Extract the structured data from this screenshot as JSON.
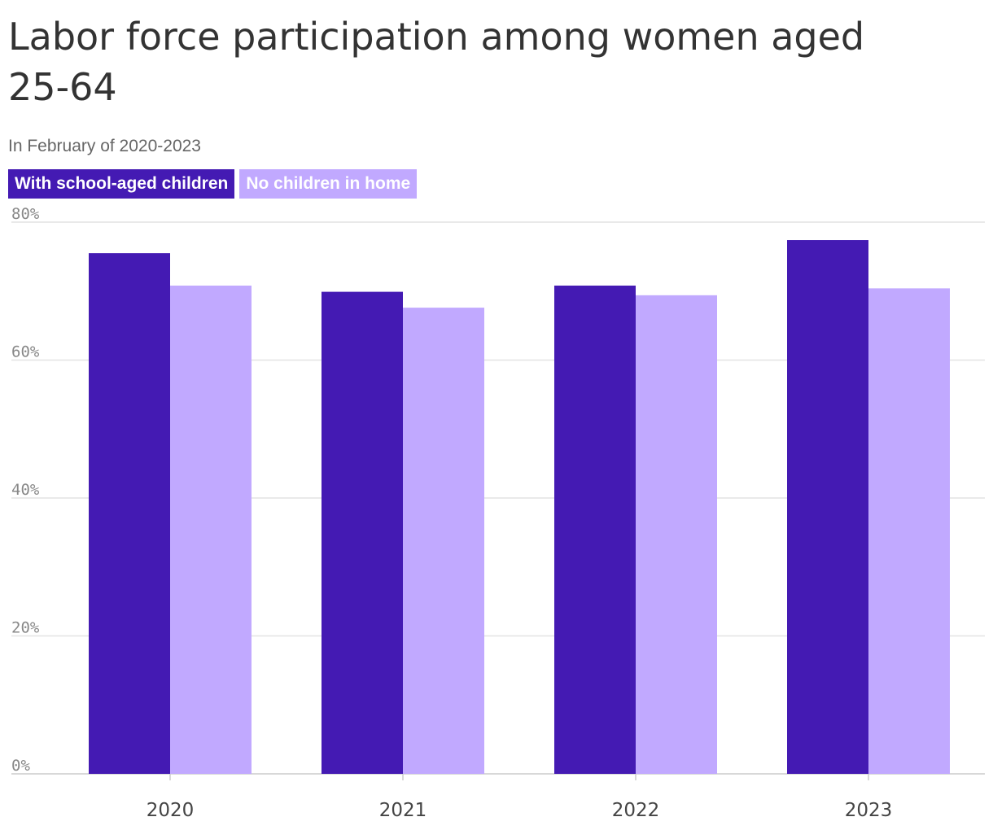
{
  "chart_data": {
    "type": "bar",
    "title": "Labor force participation among women aged 25-64",
    "subtitle": "In February of 2020-2023",
    "categories": [
      "2020",
      "2021",
      "2022",
      "2023"
    ],
    "series": [
      {
        "name": "With school-aged children",
        "values": [
          75.5,
          69.9,
          70.8,
          77.4
        ],
        "color": "#441ab3"
      },
      {
        "name": "No children in home",
        "values": [
          70.8,
          67.6,
          69.4,
          70.4
        ],
        "color": "#c1a9ff"
      }
    ],
    "ylim": [
      0,
      80
    ],
    "yticks": [
      {
        "value": 0,
        "label": "0%"
      },
      {
        "value": 20,
        "label": "20%"
      },
      {
        "value": 40,
        "label": "40%"
      },
      {
        "value": 60,
        "label": "60%"
      },
      {
        "value": 80,
        "label": "80%"
      }
    ],
    "xlabel": "",
    "ylabel": "",
    "grid": true,
    "legend_position": "top-left"
  }
}
